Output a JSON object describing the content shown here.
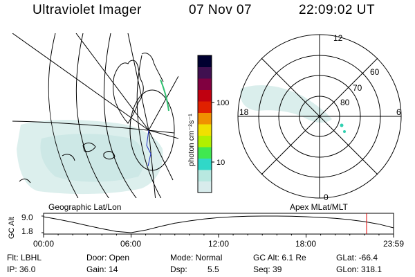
{
  "header": {
    "instrument": "Ultraviolet Imager",
    "date": "07 Nov 07",
    "time": "22:09:02 UT"
  },
  "colorbar": {
    "label": "photon cm⁻²s⁻¹",
    "ticks": [
      "100",
      "10"
    ],
    "colors": [
      "#d8ecec",
      "#b8e8e0",
      "#30d8c8",
      "#40e850",
      "#b0f000",
      "#f0e000",
      "#f09000",
      "#e02000",
      "#c00010",
      "#800040",
      "#401050",
      "#000030"
    ]
  },
  "geo_map": {
    "label": "Geographic Lat/Lon"
  },
  "polar_plot": {
    "label": "Apex MLat/MLT",
    "mlt_labels": [
      "12",
      "18",
      "6",
      "0"
    ],
    "lat_labels": [
      "60",
      "70",
      "80"
    ]
  },
  "chart_data": {
    "type": "line",
    "title": "",
    "ylabel": "GC Alt",
    "yticks": [
      "9.0",
      "1.8"
    ],
    "ylim": [
      1.8,
      9.0
    ],
    "xlim": [
      0,
      24
    ],
    "xticks": [
      "00:00",
      "06:00",
      "12:00",
      "18:00",
      "23:59"
    ],
    "series": [
      {
        "x": [
          0,
          1,
          2,
          3,
          4,
          5,
          6,
          7,
          8,
          9,
          10,
          11,
          12,
          13,
          14,
          15,
          16,
          17,
          18,
          19,
          20,
          21,
          22,
          23,
          24
        ],
        "y": [
          8.7,
          7.6,
          6.3,
          4.9,
          3.5,
          2.3,
          1.8,
          2.9,
          4.5,
          5.9,
          6.9,
          7.7,
          8.3,
          8.7,
          8.95,
          9.0,
          9.0,
          8.9,
          8.7,
          8.4,
          8.0,
          7.4,
          6.6,
          5.5,
          3.9
        ]
      }
    ],
    "current_time_marker": 22.15
  },
  "status": {
    "filter": "Flt: LBHL",
    "door": "Door: Open",
    "mode": "Mode: Normal",
    "gc_alt": "GC Alt: 6.1 Re",
    "glat": "GLat: -66.4",
    "ip": "IP: 36.0",
    "gain": "Gain: 14",
    "dsp_label": "Dsp:",
    "dsp_value": "5.5",
    "seq": "Seq: 39",
    "glon": "GLon: 318.1"
  }
}
